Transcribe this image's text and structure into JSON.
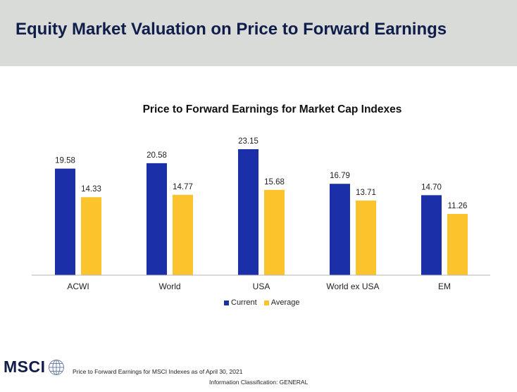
{
  "header": {
    "title": "Equity Market Valuation on Price to Forward Earnings"
  },
  "chart_data": {
    "type": "bar",
    "title": "Price to Forward Earnings for Market Cap Indexes",
    "categories": [
      "ACWI",
      "World",
      "USA",
      "World ex USA",
      "EM"
    ],
    "series": [
      {
        "name": "Current",
        "color": "#1a2fa8",
        "values": [
          19.58,
          20.58,
          23.15,
          16.79,
          14.7
        ],
        "labels": [
          "19.58",
          "20.58",
          "23.15",
          "16.79",
          "14.70"
        ]
      },
      {
        "name": "Average",
        "color": "#fcc42c",
        "values": [
          14.33,
          14.77,
          15.68,
          13.71,
          11.26
        ],
        "labels": [
          "14.33",
          "14.77",
          "15.68",
          "13.71",
          "11.26"
        ]
      }
    ],
    "ylim": [
      0,
      23.15
    ],
    "grid": false,
    "legend": "bottom-center",
    "xlabel": "",
    "ylabel": ""
  },
  "footer": {
    "logo_text": "MSCI",
    "logo_icon": "globe-icon",
    "note": "Price to Forward Earnings for MSCI Indexes as of April 30, 2021",
    "classification": "Information Classification: GENERAL"
  }
}
